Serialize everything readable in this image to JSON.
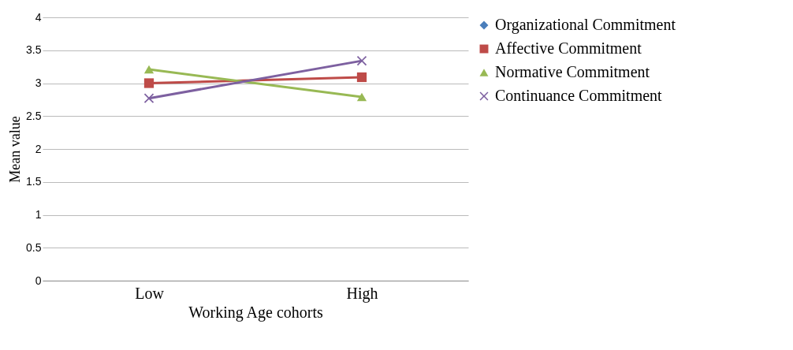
{
  "chart_data": {
    "type": "line",
    "xlabel": "Working Age cohorts",
    "ylabel": "Mean value",
    "categories": [
      "Low",
      "High"
    ],
    "series": [
      {
        "name": "Organizational Commitment",
        "color": "#4a7ebb",
        "marker": "diamond",
        "values": [
          null,
          null
        ]
      },
      {
        "name": "Affective Commitment",
        "color": "#be4b48",
        "marker": "square",
        "values": [
          3.0,
          3.09
        ]
      },
      {
        "name": "Normative Commitment",
        "color": "#98b954",
        "marker": "triangle",
        "values": [
          3.21,
          2.79
        ]
      },
      {
        "name": "Continuance Commitment",
        "color": "#7d60a0",
        "marker": "cross",
        "values": [
          2.77,
          3.34
        ]
      }
    ],
    "ylim": [
      0,
      4
    ],
    "yticks": [
      0,
      0.5,
      1,
      1.5,
      2,
      2.5,
      3,
      3.5,
      4
    ],
    "grid": "y",
    "legend": "right"
  }
}
